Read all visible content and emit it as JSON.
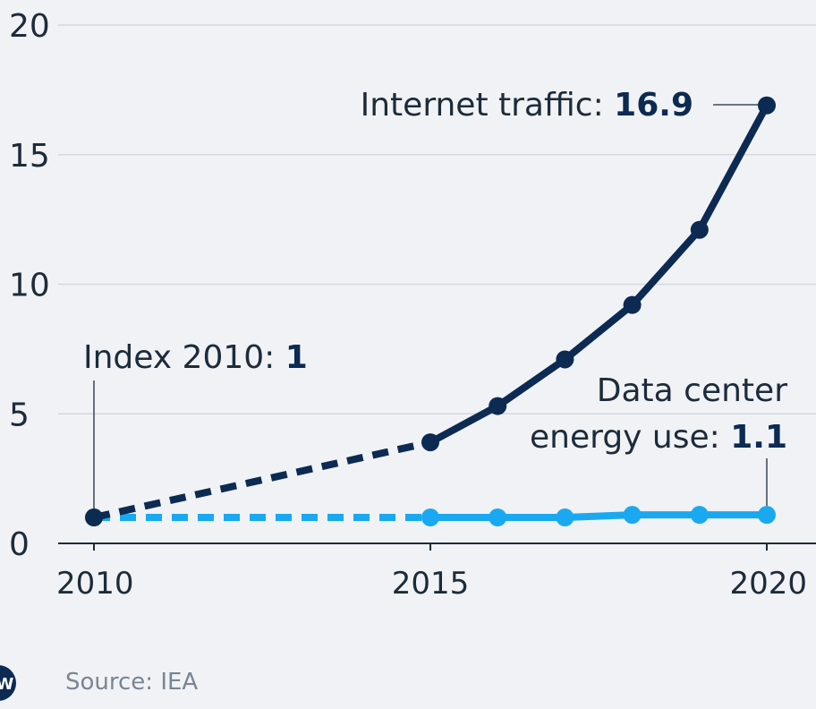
{
  "chart_data": {
    "type": "line",
    "x": [
      2010,
      2015,
      2016,
      2017,
      2018,
      2019,
      2020
    ],
    "series": [
      {
        "name": "Internet traffic:",
        "color": "#0c2a52",
        "values": [
          1,
          3.9,
          5.3,
          7.1,
          9.2,
          12.1,
          16.9
        ]
      },
      {
        "name": [
          "Data center",
          "energy use:"
        ],
        "color": "#1aa9f0",
        "values": [
          1,
          1.0,
          1.0,
          1.0,
          1.1,
          1.1,
          1.1
        ]
      }
    ],
    "dashed_until": 2015,
    "index_label": "Index 2010:",
    "xlim": [
      2010,
      2020
    ],
    "xticks": [
      2010,
      2015,
      2020
    ],
    "ylim": [
      0,
      20
    ],
    "yticks": [
      0,
      5,
      10,
      15,
      20
    ],
    "grid": true,
    "source": "Source: IEA",
    "logo": "DW"
  }
}
